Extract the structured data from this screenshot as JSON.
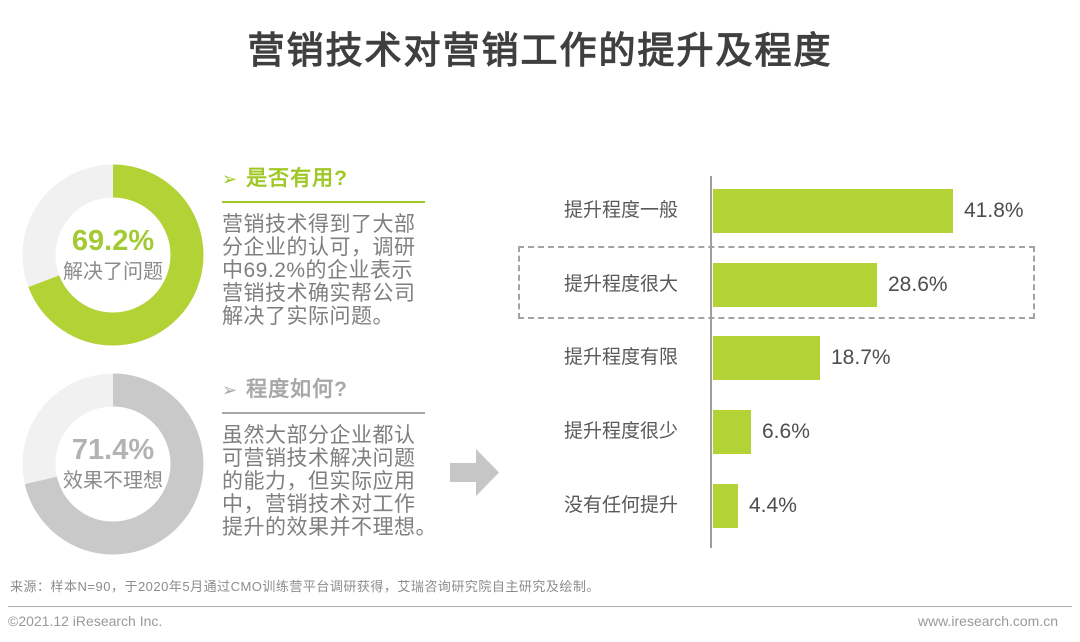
{
  "page": {
    "title": "营销技术对营销工作的提升及程度"
  },
  "notes": [
    {
      "icon": "➢",
      "heading": "是否有用?",
      "body": "营销技术得到了大部\n分企业的认可，调研\n中69.2%的企业表示\n营销技术确实帮公司\n解决了实际问题。",
      "accent": "#9fc825"
    },
    {
      "icon": "➢",
      "heading": "程度如何?",
      "body": "虽然大部分企业都认\n可营销技术解决问题\n的能力，但实际应用\n中，营销技术对工作\n提升的效果并不理想。",
      "accent": "#a8a8a8"
    }
  ],
  "chart_data": [
    {
      "type": "pie",
      "subtype": "donut",
      "title": "是否有用",
      "center_value": "69.2%",
      "center_label": "解决了问题",
      "value": 69.2,
      "remainder": 30.8,
      "color": "#b2d235",
      "track_color": "#f1f1f1",
      "value_text_color": "#a2cb33"
    },
    {
      "type": "pie",
      "subtype": "donut",
      "title": "程度如何",
      "center_value": "71.4%",
      "center_label": "效果不理想",
      "value": 71.4,
      "remainder": 28.6,
      "color": "#c9c9c9",
      "track_color": "#f1f1f1",
      "value_text_color": "#b3b3b3"
    },
    {
      "type": "bar",
      "orientation": "horizontal",
      "categories": [
        "提升程度一般",
        "提升程度很大",
        "提升程度有限",
        "提升程度很少",
        "没有任何提升"
      ],
      "values": [
        41.8,
        28.6,
        18.7,
        6.6,
        4.4
      ],
      "labels": [
        "41.8%",
        "28.6%",
        "18.7%",
        "6.6%",
        "4.4%"
      ],
      "bar_color": "#b2d235",
      "xlim": [
        0,
        45
      ],
      "grid": false,
      "highlight": {
        "category": "提升程度很大",
        "style": "dashed-box"
      }
    }
  ],
  "footer": {
    "source": "来源：样本N=90，于2020年5月通过CMO训练营平台调研获得，艾瑞咨询研究院自主研究及绘制。",
    "copyright": "©2021.12 iResearch Inc.",
    "website": "www.iresearch.com.cn"
  }
}
